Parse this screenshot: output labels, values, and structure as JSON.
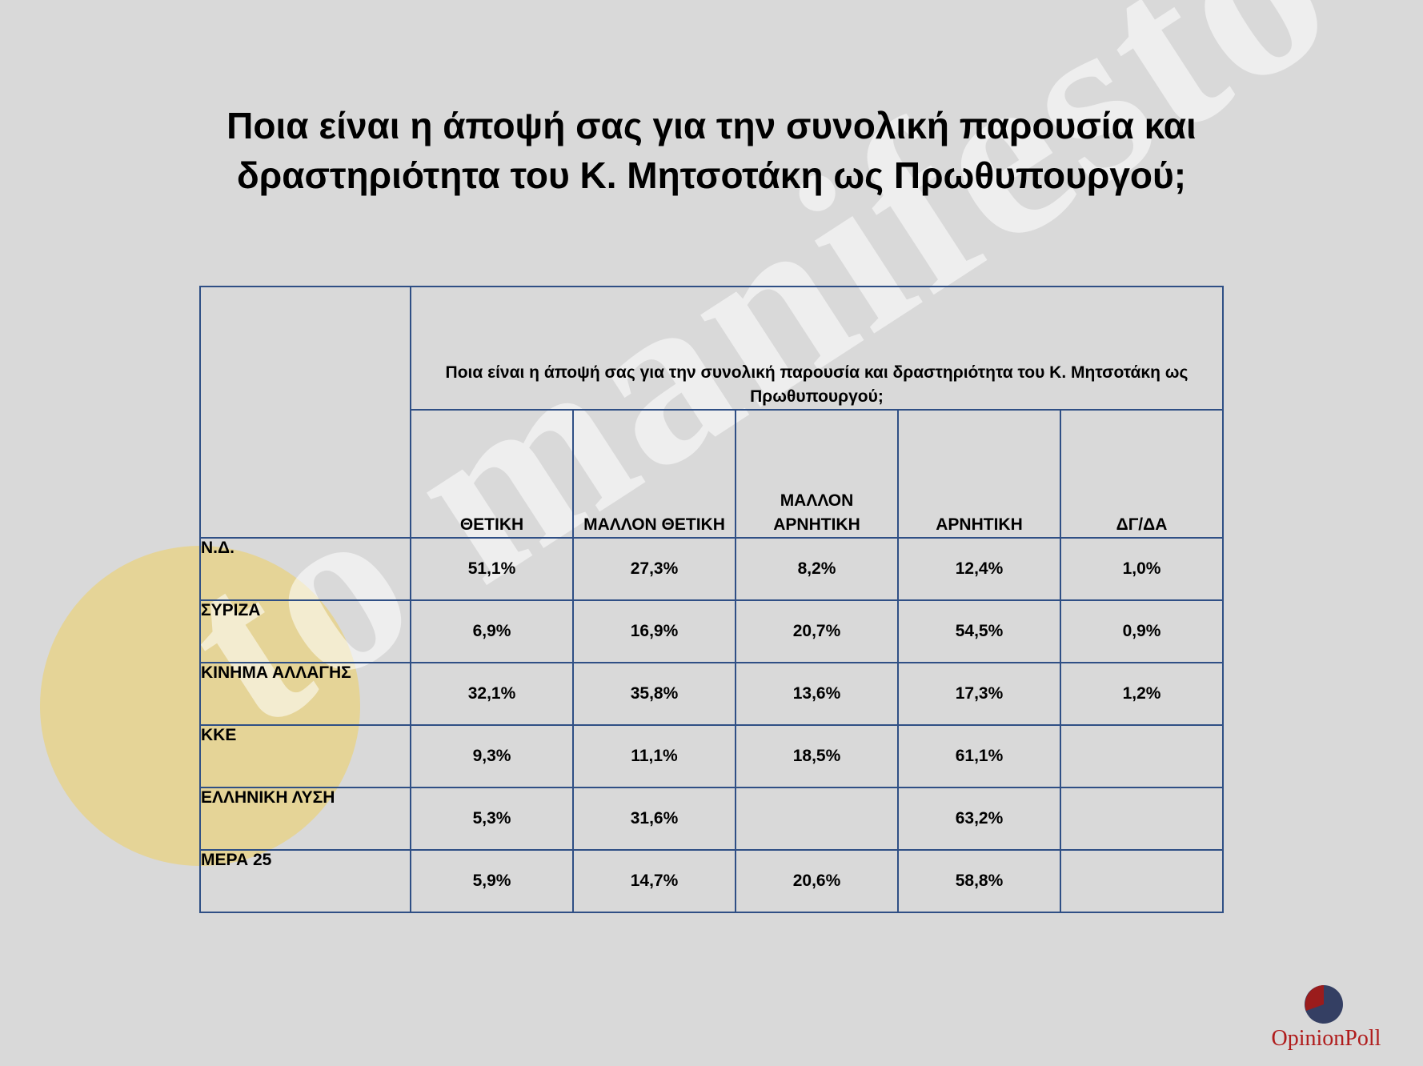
{
  "title": "Ποια είναι η άποψή σας για την συνολική παρουσία και δραστηριότητα του Κ. Μητσοτάκη ως Πρωθυπουργού;",
  "watermark": "to manifesto",
  "logo": {
    "text": "OpinionPoll",
    "icon": "opinionpoll-pie-logo-icon",
    "colors": [
      "#9b1c1c",
      "#343f63"
    ]
  },
  "chart_data": {
    "type": "table",
    "title": "Ποια είναι η άποψή σας για την συνολική παρουσία και δραστηριότητα του Κ. Μητσοτάκη ως Πρωθυπουργού;",
    "header": "Ποια είναι η άποψή σας για την συνολική παρουσία και δραστηριότητα του Κ. Μητσοτάκη ως Πρωθυπουργού;",
    "columns": [
      "ΘΕΤΙΚΗ",
      "ΜΑΛΛΟΝ ΘΕΤΙΚΗ",
      "ΜΑΛΛΟΝ ΑΡΝΗΤΙΚΗ",
      "ΑΡΝΗΤΙΚΗ",
      "ΔΓ/ΔΑ"
    ],
    "rows": [
      {
        "label": "Ν.Δ.",
        "values": [
          "51,1%",
          "27,3%",
          "8,2%",
          "12,4%",
          "1,0%"
        ]
      },
      {
        "label": "ΣΥΡΙΖΑ",
        "values": [
          "6,9%",
          "16,9%",
          "20,7%",
          "54,5%",
          "0,9%"
        ]
      },
      {
        "label": "ΚΙΝΗΜΑ ΑΛΛΑΓΗΣ",
        "values": [
          "32,1%",
          "35,8%",
          "13,6%",
          "17,3%",
          "1,2%"
        ]
      },
      {
        "label": "ΚΚΕ",
        "values": [
          "9,3%",
          "11,1%",
          "18,5%",
          "61,1%",
          ""
        ]
      },
      {
        "label": "ΕΛΛΗΝΙΚΗ ΛΥΣΗ",
        "values": [
          "5,3%",
          "31,6%",
          "",
          "63,2%",
          ""
        ]
      },
      {
        "label": "ΜΕΡΑ 25",
        "values": [
          "5,9%",
          "14,7%",
          "20,6%",
          "58,8%",
          ""
        ]
      }
    ],
    "border_color": "#2f4f85"
  }
}
